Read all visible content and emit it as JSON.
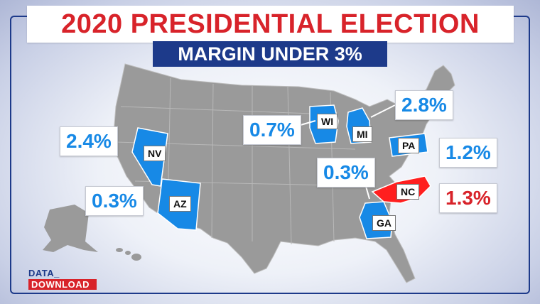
{
  "title": "2020 PRESIDENTIAL ELECTION",
  "subtitle": "MARGIN UNDER 3%",
  "colors": {
    "dem": "#1789e6",
    "rep": "#ff1f1f",
    "land": "#9a9a9a",
    "title_red": "#d8232a",
    "navy": "#1d3a8a"
  },
  "states": [
    {
      "abbr": "NV",
      "margin": "2.4%",
      "party": "dem"
    },
    {
      "abbr": "AZ",
      "margin": "0.3%",
      "party": "dem"
    },
    {
      "abbr": "WI",
      "margin": "0.7%",
      "party": "dem"
    },
    {
      "abbr": "MI",
      "margin": "2.8%",
      "party": "dem"
    },
    {
      "abbr": "PA",
      "margin": "1.2%",
      "party": "dem"
    },
    {
      "abbr": "GA",
      "margin": "0.3%",
      "party": "dem"
    },
    {
      "abbr": "NC",
      "margin": "1.3%",
      "party": "rep"
    }
  ],
  "logo": {
    "line1": "DATA_",
    "line2": "DOWNLOAD"
  }
}
